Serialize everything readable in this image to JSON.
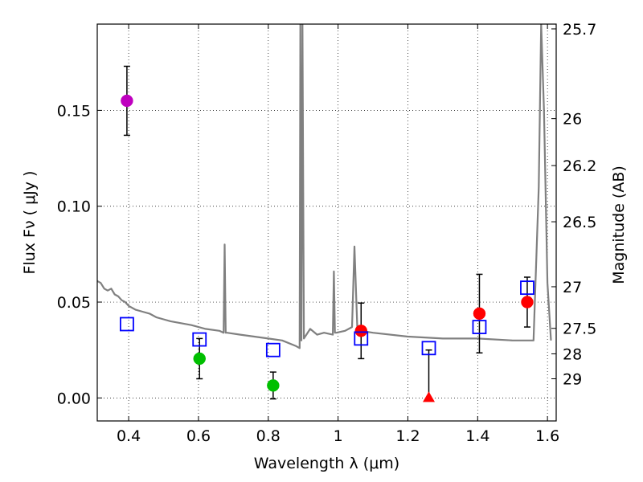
{
  "chart_data": {
    "type": "scatter",
    "xlabel": "Wavelength  λ (μm)",
    "ylabel": "Flux  Fν  ( μJy )",
    "ylabel_right": "Magnitude (AB)",
    "xlim": [
      0.31,
      1.625
    ],
    "ylim": [
      -0.012,
      0.195
    ],
    "grid": true,
    "x_ticks": [
      0.4,
      0.6,
      0.8,
      1.0,
      1.2,
      1.4,
      1.6
    ],
    "x_tick_labels": [
      "0.4",
      "0.6",
      "0.8",
      "1",
      "1.2",
      "1.4",
      "1.6"
    ],
    "y_ticks": [
      0.0,
      0.05,
      0.1,
      0.15
    ],
    "y_tick_labels": [
      "0.00",
      "0.05",
      "0.10",
      "0.15"
    ],
    "right_ticks": [
      {
        "label": "25.7",
        "flux": 0.1925
      },
      {
        "label": "26",
        "flux": 0.1457
      },
      {
        "label": "26.2",
        "flux": 0.1212
      },
      {
        "label": "26.5",
        "flux": 0.0919
      },
      {
        "label": "27",
        "flux": 0.058
      },
      {
        "label": "27.5",
        "flux": 0.0363
      },
      {
        "label": "28",
        "flux": 0.023
      },
      {
        "label": "29",
        "flux": 0.01
      }
    ],
    "series": [
      {
        "name": "magenta-point",
        "marker": "circle",
        "color": "#bf00bf",
        "points": [
          {
            "x": 0.395,
            "y": 0.155,
            "err": 0.018
          }
        ]
      },
      {
        "name": "green-points",
        "marker": "circle",
        "color": "#00bf00",
        "points": [
          {
            "x": 0.603,
            "y": 0.0205,
            "err": 0.0105
          },
          {
            "x": 0.814,
            "y": 0.0065,
            "err": 0.007
          }
        ]
      },
      {
        "name": "red-points",
        "marker": "circle",
        "color": "#ff0000",
        "points": [
          {
            "x": 1.066,
            "y": 0.035,
            "err": 0.0145
          },
          {
            "x": 1.405,
            "y": 0.044,
            "err": 0.0205
          },
          {
            "x": 1.542,
            "y": 0.05,
            "err": 0.013
          }
        ]
      },
      {
        "name": "red-upper-limit",
        "marker": "triangle",
        "color": "#ff0000",
        "points": [
          {
            "x": 1.26,
            "y": 0.0,
            "err_up": 0.025
          }
        ]
      },
      {
        "name": "model-photometry",
        "marker": "square-open",
        "color": "#0000ff",
        "points": [
          {
            "x": 0.395,
            "y": 0.0385
          },
          {
            "x": 0.603,
            "y": 0.0305
          },
          {
            "x": 0.814,
            "y": 0.025
          },
          {
            "x": 1.066,
            "y": 0.031
          },
          {
            "x": 1.26,
            "y": 0.026
          },
          {
            "x": 1.405,
            "y": 0.037
          },
          {
            "x": 1.542,
            "y": 0.0575
          }
        ]
      }
    ],
    "template_spectrum": {
      "name": "template-spectrum",
      "color": "#808080",
      "x": [
        0.31,
        0.32,
        0.33,
        0.34,
        0.35,
        0.36,
        0.37,
        0.38,
        0.39,
        0.4,
        0.42,
        0.44,
        0.46,
        0.48,
        0.5,
        0.52,
        0.55,
        0.58,
        0.62,
        0.66,
        0.672,
        0.675,
        0.678,
        0.682,
        0.72,
        0.76,
        0.8,
        0.84,
        0.88,
        0.89,
        0.892,
        0.895,
        0.898,
        0.902,
        0.92,
        0.94,
        0.96,
        0.985,
        0.988,
        0.991,
        0.995,
        1.02,
        1.04,
        1.047,
        1.055,
        1.065,
        1.1,
        1.2,
        1.3,
        1.4,
        1.5,
        1.56,
        1.575,
        1.582,
        1.59,
        1.6,
        1.61
      ],
      "y": [
        0.061,
        0.06,
        0.057,
        0.056,
        0.057,
        0.054,
        0.053,
        0.051,
        0.05,
        0.048,
        0.046,
        0.045,
        0.044,
        0.042,
        0.041,
        0.04,
        0.039,
        0.038,
        0.036,
        0.035,
        0.034,
        0.08,
        0.034,
        0.034,
        0.033,
        0.032,
        0.031,
        0.03,
        0.027,
        0.026,
        0.195,
        0.03,
        0.195,
        0.031,
        0.036,
        0.033,
        0.034,
        0.033,
        0.066,
        0.034,
        0.034,
        0.035,
        0.037,
        0.079,
        0.037,
        0.035,
        0.034,
        0.032,
        0.031,
        0.031,
        0.03,
        0.03,
        0.11,
        0.195,
        0.15,
        0.06,
        0.03
      ]
    }
  }
}
